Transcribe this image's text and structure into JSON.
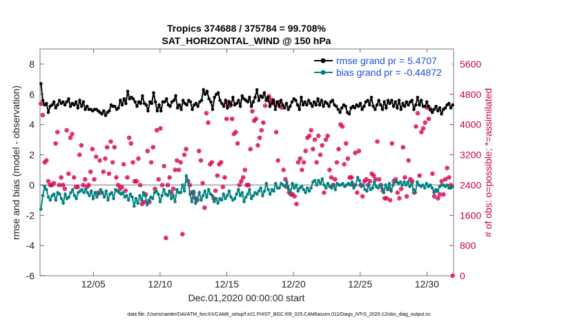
{
  "chart_data": {
    "type": "line",
    "title": "Tropics 374688 / 375784 = 99.708%",
    "subtitle": "SAT_HORIZONTAL_WIND @ 150 hPa",
    "xlabel": "Dec.01,2020 00:00:00 start",
    "ylabel": "rmse and bias (model - observation)",
    "ylabel_right": "# of obs: o=possible; *=assimilated",
    "xlim": [
      1,
      32
    ],
    "ylim": [
      -6,
      9
    ],
    "ylim_right": [
      0,
      6000
    ],
    "xticks": [
      5,
      10,
      15,
      20,
      25,
      30
    ],
    "xtick_labels": [
      "12/05",
      "12/10",
      "12/15",
      "12/20",
      "12/25",
      "12/30"
    ],
    "yticks": [
      -6,
      -4,
      -2,
      0,
      2,
      4,
      6,
      8
    ],
    "ytick_labels": [
      "-6",
      "-4",
      "-2",
      "0",
      "2",
      "4",
      "6",
      "8"
    ],
    "yticks_right": [
      0,
      800,
      1600,
      2400,
      3200,
      4000,
      4800,
      5600
    ],
    "ytick_labels_right": [
      "0",
      "800",
      "1600",
      "2400",
      "3200",
      "4000",
      "4800",
      "5600"
    ],
    "legend": [
      "rmse grand pr = 5.4707",
      "bias grand pr = -0.44872"
    ],
    "legend_position": "top-right",
    "footer": "data file: /Users/raeder/DAI/ATM_forcXX/CAM6_setup/f.e21.FHIST_BGC.f09_025.CAM6assim.011/Diags_NTrS_2020-12/obs_diag_output.nc",
    "series": [
      {
        "name": "rmse",
        "color": "#000000",
        "values": [
          6.7,
          5.6,
          5.3,
          5.4,
          4.8,
          5.2,
          5.3,
          5.5,
          5.1,
          5.3,
          5.6,
          5.4,
          5.5,
          5.3,
          5.5,
          5.7,
          5.2,
          5.4,
          5.3,
          5.5,
          5.1,
          5.6,
          5.2,
          5.5,
          5.0,
          5.2,
          5.0,
          5.0,
          4.9,
          5.0,
          5.0,
          4.9,
          4.8,
          4.7,
          4.9,
          4.6,
          4.8,
          4.9,
          5.3,
          5.2,
          5.2,
          5.0,
          5.1,
          5.6,
          5.3,
          5.7,
          5.4,
          6.2,
          5.7,
          5.8,
          5.7,
          5.5,
          5.2,
          5.5,
          5.4,
          5.9,
          5.4,
          5.3,
          4.9,
          5.5,
          5.4,
          6.1,
          5.5,
          4.9,
          5.3,
          4.9,
          5.5,
          5.5,
          5.7,
          5.3,
          5.2,
          5.5,
          5.6,
          5.9,
          5.1,
          5.3,
          5.0,
          5.6,
          5.4,
          5.3,
          5.6,
          5.5,
          5.0,
          5.3,
          5.4,
          5.2,
          5.5,
          5.6,
          6.3,
          6.0,
          6.2,
          5.7,
          5.5,
          5.0,
          5.8,
          6.0,
          6.1,
          5.6,
          5.4,
          5.2,
          5.6,
          5.1,
          5.5,
          5.3,
          5.8,
          5.3,
          5.4,
          5.6,
          5.2,
          5.9,
          5.7,
          5.6,
          5.5,
          5.8,
          5.2,
          5.5,
          5.8,
          6.3,
          5.6,
          5.9,
          5.8,
          6.1,
          5.6,
          5.8,
          5.2,
          5.4,
          5.6,
          5.0,
          5.5,
          5.2,
          5.6,
          5.3,
          5.1,
          5.4,
          5.0,
          5.2,
          5.5,
          5.7,
          5.6,
          5.3,
          5.0,
          5.8,
          5.3,
          5.5,
          5.3,
          5.6,
          5.4,
          5.2,
          5.5,
          5.3,
          5.7,
          5.3,
          5.6,
          5.2,
          5.5,
          5.4,
          5.2,
          5.5,
          5.6,
          5.3,
          5.2,
          5.0,
          4.8,
          5.1,
          5.3,
          5.2,
          4.8,
          4.7,
          5.1,
          5.2,
          5.1,
          5.3,
          5.2,
          5.4,
          5.0,
          5.2,
          5.5,
          5.6,
          5.3,
          5.8,
          5.2,
          5.0,
          5.3,
          5.6,
          5.3,
          5.0,
          5.5,
          5.1,
          5.6,
          5.4,
          5.6,
          5.2,
          5.5,
          5.1,
          5.6,
          5.0,
          5.4,
          5.2,
          5.5,
          5.3,
          5.5,
          5.6,
          5.0,
          5.3,
          5.8,
          5.3,
          5.6,
          5.2,
          5.2,
          5.5,
          5.2,
          5.0,
          4.8,
          5.0,
          5.2,
          4.9,
          5.1,
          4.7,
          5.0,
          5.1,
          5.3,
          5.4,
          5.1,
          5.3
        ]
      },
      {
        "name": "bias",
        "color": "#008080",
        "values": [
          -1.6,
          -0.7,
          -0.1,
          -0.3,
          -0.8,
          -1.0,
          -0.7,
          -0.6,
          -1.0,
          -0.5,
          -0.6,
          -0.9,
          -1.2,
          -0.6,
          -0.9,
          -0.8,
          -0.5,
          -0.3,
          -0.7,
          -0.9,
          -0.5,
          -0.4,
          -0.3,
          -0.5,
          -0.3,
          -0.5,
          -0.7,
          -0.4,
          -0.9,
          -0.5,
          -0.8,
          -0.6,
          -0.3,
          -0.5,
          -0.8,
          -0.4,
          -1.0,
          -0.6,
          -0.5,
          -0.9,
          -0.3,
          -0.4,
          -0.5,
          -0.6,
          -0.5,
          -0.8,
          -0.7,
          -1.0,
          -0.6,
          -0.8,
          -1.4,
          -0.9,
          -1.2,
          -0.7,
          -1.0,
          -0.5,
          -0.7,
          -1.3,
          -1.0,
          -0.8,
          -0.9,
          -0.5,
          -0.4,
          -0.6,
          -1.1,
          -0.7,
          -0.3,
          -0.6,
          -0.7,
          -0.4,
          -0.9,
          -0.7,
          -1.1,
          -0.3,
          -0.5,
          -0.5,
          0.0,
          -0.4,
          0.6,
          0.3,
          -0.6,
          -1.1,
          -0.4,
          -1.2,
          -0.9,
          -0.5,
          -1.0,
          -0.7,
          -0.4,
          -0.8,
          -0.3,
          -0.6,
          -0.7,
          -1.1,
          -0.9,
          -1.2,
          -0.9,
          -1.0,
          -0.6,
          -0.9,
          -0.7,
          -0.4,
          -0.8,
          -1.0,
          -0.9,
          -0.6,
          -0.3,
          -0.7,
          -0.5,
          -1.1,
          -0.8,
          -0.6,
          -0.3,
          -0.9,
          -0.7,
          -0.5,
          -0.6,
          -0.4,
          -0.2,
          -0.7,
          -0.4,
          0.1,
          -0.3,
          -0.6,
          -0.3,
          -0.4,
          0.1,
          -0.2,
          -0.2,
          0.1,
          0.0,
          -0.1,
          0.2,
          -0.3,
          -0.5,
          0.1,
          -0.2,
          0.0,
          -0.4,
          -0.2,
          -0.1,
          -0.3,
          -0.5,
          -0.2,
          -0.4,
          -0.2,
          0.2,
          0.3,
          0.0,
          0.3,
          0.1,
          0.4,
          0.0,
          -0.2,
          0.1,
          -0.1,
          -0.2,
          0.0,
          -0.3,
          0.1,
          0.0,
          0.0,
          0.1,
          -0.1,
          0.0,
          0.1,
          0.0,
          0.2,
          -0.2,
          0.0,
          0.5,
          0.3,
          -0.1,
          0.0,
          -0.3,
          -0.4,
          0.0,
          -0.3,
          -0.2,
          0.2,
          -0.1,
          -0.2,
          0.0,
          -0.2,
          -0.5,
          0.0,
          -0.3,
          0.1,
          -0.4,
          0.0,
          0.2,
          0.2,
          0.1,
          0.2,
          0.0,
          0.2,
          0.0,
          0.2,
          -0.1,
          0.1,
          -0.3,
          -0.5,
          0.2,
          0.0,
          -0.1,
          0.0,
          -0.2,
          0.1,
          -0.1,
          0.0,
          -0.2,
          -0.5,
          -0.3,
          -0.4,
          -0.1,
          0.0,
          0.0,
          -0.1,
          0.0,
          -0.2,
          -0.2,
          -0.1
        ]
      }
    ],
    "obs_counts": {
      "name": "# of obs (possible o / assimilated *)",
      "color": "#d40050",
      "values": [
        4550,
        4250,
        3000,
        3050,
        2500,
        2400,
        2400,
        2450,
        3500,
        3800,
        2400,
        2600,
        2400,
        2300,
        3850,
        2700,
        3650,
        3750,
        2600,
        2350,
        2350,
        3200,
        3450,
        2400,
        2550,
        2350,
        2400,
        2750,
        3350,
        2550,
        3150,
        2200,
        3050,
        2200,
        2750,
        3100,
        3400,
        2700,
        3550,
        3000,
        3400,
        2600,
        2400,
        2300,
        2350,
        2950,
        2250,
        2600,
        3650,
        3500,
        3000,
        2500,
        2500,
        3100,
        2400,
        1900,
        1950,
        2150,
        3300,
        1950,
        3000,
        3400,
        2300,
        3850,
        2550,
        3900,
        2400,
        2900,
        1000,
        2400,
        2600,
        2200,
        2300,
        2800,
        3050,
        2800,
        3000,
        1100,
        3200,
        3350,
        2500,
        2400,
        2200,
        2200,
        2050,
        2000,
        3300,
        3050,
        2450,
        1800,
        4300,
        4050,
        2950,
        3000,
        2050,
        2250,
        2650,
        2950,
        3000,
        2350,
        2600,
        4150,
        4600,
        4500,
        4150,
        3750,
        3800,
        3500,
        2400,
        2500,
        2600,
        2800,
        2400,
        2400,
        3350,
        4350,
        4100,
        4150,
        3450,
        3650,
        3850,
        4050,
        4500,
        4650,
        4750,
        4650,
        4650,
        4550,
        3800,
        3050,
        4600,
        4450,
        2800,
        2550,
        2350,
        2200,
        2150,
        2150,
        2100,
        1900,
        3000,
        3100,
        2800,
        3000,
        3300,
        3650,
        3700,
        3850,
        3350,
        3600,
        3000,
        3700,
        3200,
        3450,
        2200,
        3600,
        3700,
        2800,
        2600,
        2400,
        2550,
        3000,
        3350,
        4000,
        3950,
        2950,
        3500,
        3100,
        2600,
        2600,
        2400,
        3250,
        2200,
        3300,
        2400,
        2100,
        2500,
        2550,
        2400,
        2500,
        2700,
        2650,
        2550,
        3550,
        2550,
        2400,
        2250,
        2050,
        2050,
        2300,
        2000,
        3500,
        2500,
        2550,
        2200,
        2050,
        2300,
        3400,
        2600,
        2100,
        3050,
        2550,
        2500,
        2200,
        3950,
        4300,
        2650,
        3800,
        3900,
        4050,
        4450,
        4150,
        4400,
        2700,
        2100,
        2250,
        2050,
        2150,
        2500,
        2150,
        2550,
        2850,
        2600,
        2400,
        0
      ]
    }
  }
}
